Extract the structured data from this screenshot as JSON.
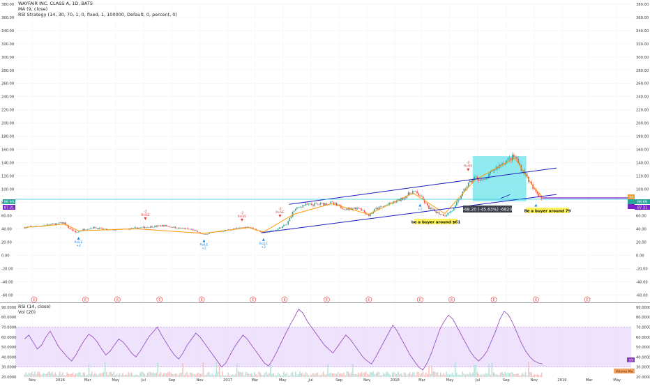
{
  "header": {
    "symbol_title": "WAYFAIR INC. CLASS A, 1D, BATS",
    "ma_label": "MA (9, close)",
    "strategy_label": "RSI Strategy (14, 30, 70, 1, 0, fixed, 1, 100000, Default, 0, percent, 0)"
  },
  "rsi_panel": {
    "label": "RSI (14, close)",
    "vol_label": "Vol (20)",
    "last_value_badge": "33",
    "volume_ma_badge": "Volume Ma"
  },
  "price_badges": {
    "left_top": "86.69",
    "left_bottom": "87.31",
    "right_top": "86.69",
    "right_bottom": "87.31",
    "right_orange": "93"
  },
  "annotations": {
    "buyer_61": "be a buyer around $61",
    "buyer_79": "Be a buyer around 79",
    "measure": "-68.20 (-45.63%) -6820"
  },
  "signals": {
    "short_label": "RsiSE",
    "short_qty": "-2",
    "long_label": "RsiLE",
    "long_qty": "+2"
  },
  "earnings_marker": "E",
  "colors": {
    "up": "#26a69a",
    "down": "#ef5350",
    "ma": "#ff9800",
    "channel": "#1b1bc2",
    "rsi": "#8e3fbf",
    "rsi_band": "#e9d8fb",
    "measure_box": "#6de3ec",
    "support": "#7a22c9",
    "crosshair": "#26c6da"
  },
  "chart_data": [
    {
      "type": "candlestick",
      "title": "WAYFAIR INC. CLASS A, 1D, BATS",
      "x_tick_labels": [
        "Nov",
        "2016",
        "Mar",
        "May",
        "Jul",
        "Sep",
        "Nov",
        "2017",
        "Mar",
        "May",
        "Jul",
        "Sep",
        "Nov",
        "2018",
        "Mar",
        "May",
        "Jul",
        "Sep",
        "Nov",
        "2019",
        "Mar",
        "May"
      ],
      "y_tick_labels": [
        "380.00",
        "360.00",
        "340.00",
        "320.00",
        "300.00",
        "280.00",
        "260.00",
        "240.00",
        "220.00",
        "200.00",
        "180.00",
        "160.00",
        "140.00",
        "120.00",
        "100.00",
        "80.00",
        "60.00",
        "40.00",
        "20.00",
        "0.00",
        "-20.00",
        "-40.00",
        "-60.00"
      ],
      "ylim": [
        -65,
        382
      ],
      "series": [
        {
          "name": "close",
          "points": [
            [
              "2015-10-15",
              42
            ],
            [
              "2015-11-15",
              44
            ],
            [
              "2015-12-15",
              47
            ],
            [
              "2016-01-10",
              49
            ],
            [
              "2016-01-20",
              41
            ],
            [
              "2016-02-05",
              34
            ],
            [
              "2016-02-20",
              39
            ],
            [
              "2016-03-15",
              42
            ],
            [
              "2016-04-15",
              38
            ],
            [
              "2016-05-15",
              39
            ],
            [
              "2016-06-15",
              41
            ],
            [
              "2016-07-15",
              43
            ],
            [
              "2016-08-15",
              45
            ],
            [
              "2016-09-15",
              41
            ],
            [
              "2016-10-15",
              39
            ],
            [
              "2016-11-08",
              31
            ],
            [
              "2016-11-25",
              34
            ],
            [
              "2016-12-15",
              36
            ],
            [
              "2017-01-15",
              40
            ],
            [
              "2017-02-15",
              43
            ],
            [
              "2017-03-10",
              37
            ],
            [
              "2017-03-20",
              34
            ],
            [
              "2017-04-15",
              38
            ],
            [
              "2017-05-10",
              47
            ],
            [
              "2017-05-25",
              68
            ],
            [
              "2017-06-15",
              76
            ],
            [
              "2017-07-15",
              77
            ],
            [
              "2017-08-15",
              79
            ],
            [
              "2017-09-15",
              70
            ],
            [
              "2017-10-15",
              72
            ],
            [
              "2017-11-05",
              60
            ],
            [
              "2017-11-20",
              70
            ],
            [
              "2017-12-15",
              76
            ],
            [
              "2018-01-15",
              85
            ],
            [
              "2018-02-10",
              97
            ],
            [
              "2018-02-25",
              90
            ],
            [
              "2018-03-15",
              72
            ],
            [
              "2018-04-05",
              64
            ],
            [
              "2018-04-20",
              60
            ],
            [
              "2018-05-10",
              70
            ],
            [
              "2018-05-25",
              90
            ],
            [
              "2018-06-10",
              108
            ],
            [
              "2018-06-25",
              118
            ],
            [
              "2018-07-15",
              112
            ],
            [
              "2018-08-05",
              130
            ],
            [
              "2018-08-25",
              140
            ],
            [
              "2018-09-10",
              146
            ],
            [
              "2018-09-20",
              150
            ],
            [
              "2018-10-01",
              135
            ],
            [
              "2018-10-15",
              120
            ],
            [
              "2018-10-30",
              100
            ],
            [
              "2018-11-10",
              92
            ],
            [
              "2018-11-20",
              85
            ]
          ]
        },
        {
          "name": "MA (9, close)",
          "points": [
            [
              "2015-10-15",
              42
            ],
            [
              "2016-01-10",
              47
            ],
            [
              "2016-02-10",
              37
            ],
            [
              "2016-06-15",
              40
            ],
            [
              "2016-11-10",
              33
            ],
            [
              "2017-02-15",
              42
            ],
            [
              "2017-03-20",
              35
            ],
            [
              "2017-05-25",
              62
            ],
            [
              "2017-08-15",
              78
            ],
            [
              "2017-11-05",
              62
            ],
            [
              "2018-02-10",
              94
            ],
            [
              "2018-04-20",
              63
            ],
            [
              "2018-06-25",
              114
            ],
            [
              "2018-09-20",
              147
            ],
            [
              "2018-10-30",
              104
            ],
            [
              "2018-11-20",
              88
            ]
          ]
        }
      ],
      "drawings": {
        "upper_channel": [
          [
            "2017-05-15",
            77
          ],
          [
            "2018-12-20",
            132
          ]
        ],
        "lower_channel": [
          [
            "2017-03-15",
            34
          ],
          [
            "2018-12-20",
            92
          ]
        ],
        "support_line": [
          [
            "2018-11-20",
            86.7
          ],
          [
            "2019-06-01",
            86.7
          ]
        ],
        "measure_range": {
          "from": [
            "2018-06-20",
            150
          ],
          "to": [
            "2018-10-15",
            81.8
          ],
          "change": -68.2,
          "pct": -45.63
        }
      }
    },
    {
      "type": "line",
      "title": "RSI (14, close)",
      "y_tick_labels": [
        "90.0000",
        "80.0000",
        "70.0000",
        "60.0000",
        "50.0000",
        "40.0000",
        "30.0000",
        "20.0000"
      ],
      "ylim": [
        20,
        92
      ],
      "band": [
        30,
        70
      ],
      "series": [
        {
          "name": "RSI (14, close)",
          "values": [
            58,
            62,
            55,
            48,
            52,
            60,
            66,
            58,
            50,
            45,
            40,
            36,
            42,
            50,
            57,
            63,
            60,
            55,
            48,
            42,
            46,
            52,
            58,
            55,
            50,
            44,
            40,
            46,
            53,
            60,
            65,
            70,
            62,
            55,
            48,
            42,
            38,
            44,
            52,
            58,
            64,
            60,
            54,
            48,
            42,
            36,
            30,
            34,
            42,
            50,
            56,
            62,
            58,
            52,
            46,
            40,
            34,
            31,
            38,
            46,
            55,
            64,
            72,
            80,
            88,
            84,
            76,
            70,
            64,
            58,
            52,
            48,
            44,
            50,
            56,
            62,
            58,
            52,
            46,
            40,
            36,
            33,
            40,
            48,
            56,
            64,
            72,
            66,
            58,
            50,
            42,
            36,
            30,
            27,
            34,
            44,
            56,
            68,
            76,
            82,
            78,
            70,
            62,
            54,
            46,
            40,
            36,
            40,
            46,
            56,
            66,
            78,
            86,
            82,
            74,
            64,
            54,
            46,
            40,
            36,
            34,
            33
          ]
        }
      ]
    }
  ]
}
